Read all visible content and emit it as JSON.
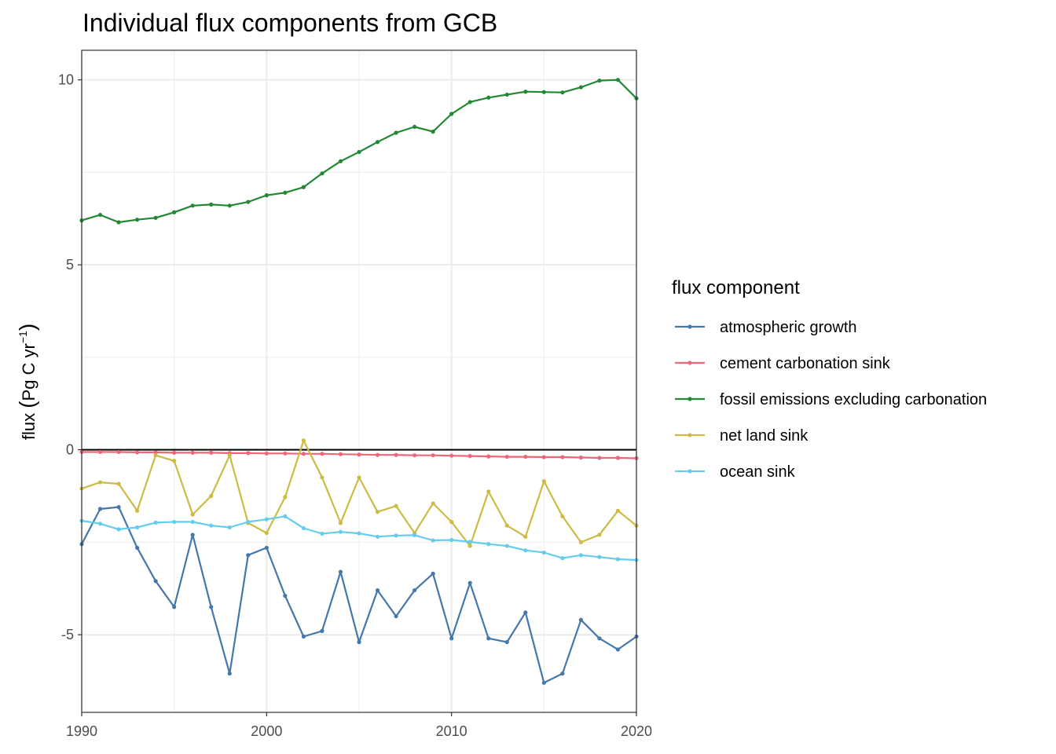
{
  "chart_data": {
    "type": "line",
    "title": "Individual flux components from GCB",
    "xlabel": "",
    "ylabel_parts": {
      "lead": "flux ",
      "unit": "Pg C yr",
      "exponent": "−1"
    },
    "xlim": [
      1990,
      2020
    ],
    "ylim": [
      -7.1,
      10.8
    ],
    "x_ticks": [
      1990,
      2000,
      2010,
      2020
    ],
    "x_tick_labels": [
      "1990",
      "2000",
      "2010",
      "2020"
    ],
    "y_ticks": [
      -5,
      0,
      5,
      10
    ],
    "y_tick_labels": [
      "-5",
      "0",
      "5",
      "10"
    ],
    "y_minor_ticks": [
      -2.5,
      2.5,
      7.5
    ],
    "x_minor_ticks": [
      1995,
      2005,
      2015
    ],
    "grid": true,
    "zero_line": true,
    "legend_title": "flux component",
    "legend_position": "right",
    "x": [
      1990,
      1991,
      1992,
      1993,
      1994,
      1995,
      1996,
      1997,
      1998,
      1999,
      2000,
      2001,
      2002,
      2003,
      2004,
      2005,
      2006,
      2007,
      2008,
      2009,
      2010,
      2011,
      2012,
      2013,
      2014,
      2015,
      2016,
      2017,
      2018,
      2019,
      2020
    ],
    "series": [
      {
        "name": "atmospheric growth",
        "color": "#4477aa",
        "values": [
          -2.55,
          -1.6,
          -1.55,
          -2.65,
          -3.55,
          -4.25,
          -2.3,
          -4.25,
          -6.05,
          -2.85,
          -2.65,
          -3.95,
          -5.05,
          -4.9,
          -3.3,
          -5.2,
          -3.8,
          -4.5,
          -3.8,
          -3.35,
          -5.1,
          -3.6,
          -5.1,
          -5.2,
          -4.4,
          -6.3,
          -6.05,
          -4.6,
          -5.1,
          -5.4,
          -5.05
        ]
      },
      {
        "name": "cement carbonation sink",
        "color": "#ee6677",
        "values": [
          -0.06,
          -0.06,
          -0.06,
          -0.07,
          -0.07,
          -0.08,
          -0.08,
          -0.08,
          -0.09,
          -0.09,
          -0.1,
          -0.1,
          -0.11,
          -0.11,
          -0.12,
          -0.13,
          -0.14,
          -0.14,
          -0.15,
          -0.15,
          -0.16,
          -0.17,
          -0.18,
          -0.19,
          -0.19,
          -0.2,
          -0.2,
          -0.21,
          -0.22,
          -0.22,
          -0.23
        ]
      },
      {
        "name": "fossil emissions excluding carbonation",
        "color": "#228833",
        "values": [
          6.2,
          6.35,
          6.15,
          6.22,
          6.27,
          6.42,
          6.6,
          6.63,
          6.6,
          6.7,
          6.88,
          6.95,
          7.1,
          7.47,
          7.8,
          8.05,
          8.32,
          8.57,
          8.73,
          8.6,
          9.08,
          9.4,
          9.52,
          9.6,
          9.68,
          9.67,
          9.66,
          9.8,
          9.98,
          10.0,
          9.5
        ]
      },
      {
        "name": "net land sink",
        "color": "#ccbb44",
        "values": [
          -1.05,
          -0.88,
          -0.92,
          -1.65,
          -0.15,
          -0.3,
          -1.75,
          -1.25,
          -0.15,
          -1.98,
          -2.25,
          -1.28,
          0.25,
          -0.75,
          -1.98,
          -0.75,
          -1.68,
          -1.52,
          -2.25,
          -1.45,
          -1.95,
          -2.6,
          -1.13,
          -2.05,
          -2.35,
          -0.85,
          -1.8,
          -2.5,
          -2.3,
          -1.65,
          -2.05
        ]
      },
      {
        "name": "ocean sink",
        "color": "#66ccee",
        "values": [
          -1.92,
          -2.0,
          -2.15,
          -2.1,
          -1.97,
          -1.95,
          -1.95,
          -2.05,
          -2.1,
          -1.95,
          -1.88,
          -1.8,
          -2.12,
          -2.27,
          -2.22,
          -2.26,
          -2.35,
          -2.32,
          -2.31,
          -2.45,
          -2.44,
          -2.49,
          -2.55,
          -2.6,
          -2.72,
          -2.78,
          -2.93,
          -2.85,
          -2.9,
          -2.96,
          -2.98
        ]
      }
    ]
  }
}
